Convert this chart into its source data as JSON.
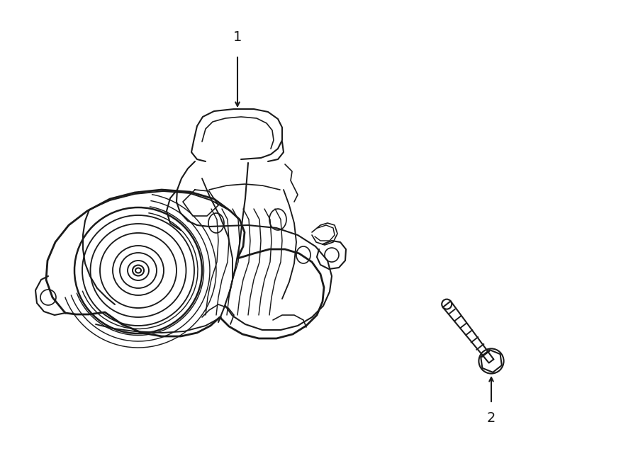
{
  "background_color": "#ffffff",
  "line_color": "#1a1a1a",
  "line_width": 1.5,
  "label1_text": "1",
  "label2_text": "2",
  "fig_width": 9.0,
  "fig_height": 6.61,
  "dpi": 100
}
